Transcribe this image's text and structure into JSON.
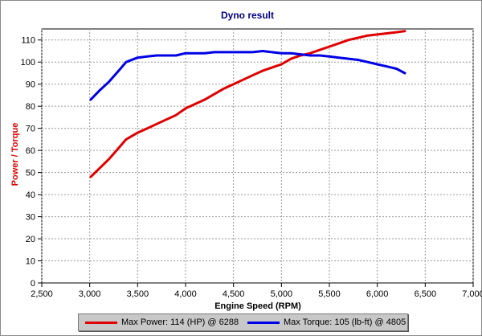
{
  "chart_data": {
    "type": "line",
    "title": "Dyno result",
    "xlabel": "Engine Speed (RPM)",
    "ylabel": "Power / Torque",
    "xlim": [
      2500,
      7000
    ],
    "ylim": [
      0,
      115
    ],
    "xticks": [
      2500,
      3000,
      3500,
      4000,
      4500,
      5000,
      5500,
      6000,
      6500,
      7000
    ],
    "xtick_labels": [
      "2,500",
      "3,000",
      "3,500",
      "4,000",
      "4,500",
      "5,000",
      "5,500",
      "6,000",
      "6,500",
      "7,000"
    ],
    "yticks": [
      0,
      10,
      20,
      30,
      40,
      50,
      60,
      70,
      80,
      90,
      100,
      110
    ],
    "grid": true,
    "legend_placement": "bottom",
    "series": [
      {
        "name": "Max Power: 114 (HP) @ 6288",
        "color": "#e00000",
        "x": [
          3010,
          3200,
          3300,
          3380,
          3500,
          3600,
          3700,
          3800,
          3900,
          4000,
          4100,
          4200,
          4300,
          4400,
          4500,
          4600,
          4700,
          4800,
          4900,
          5000,
          5100,
          5200,
          5300,
          5400,
          5500,
          5600,
          5700,
          5800,
          5900,
          6000,
          6100,
          6200,
          6288
        ],
        "values": [
          48,
          56,
          61,
          65,
          68,
          70,
          72,
          74,
          76,
          79,
          81,
          83,
          85.5,
          88,
          90,
          92,
          94,
          96,
          97.5,
          99,
          101.5,
          103,
          104,
          105.5,
          107,
          108.5,
          110,
          111,
          112,
          112.5,
          113,
          113.5,
          114
        ]
      },
      {
        "name": "Max Torque: 105 (lb-ft) @ 4805",
        "color": "#0000e6",
        "x": [
          3010,
          3100,
          3200,
          3300,
          3380,
          3500,
          3600,
          3700,
          3800,
          3900,
          4000,
          4100,
          4200,
          4300,
          4400,
          4500,
          4600,
          4700,
          4805,
          4900,
          5000,
          5100,
          5200,
          5300,
          5400,
          5500,
          5600,
          5700,
          5800,
          5900,
          6000,
          6100,
          6200,
          6288
        ],
        "values": [
          83,
          87,
          91,
          96,
          100,
          102,
          102.5,
          103,
          103,
          103,
          104,
          104,
          104,
          104.5,
          104.5,
          104.5,
          104.5,
          104.5,
          105,
          104.5,
          104,
          104,
          103.5,
          103,
          103,
          102.5,
          102,
          101.5,
          101,
          100,
          99,
          98,
          97,
          95
        ]
      }
    ]
  }
}
